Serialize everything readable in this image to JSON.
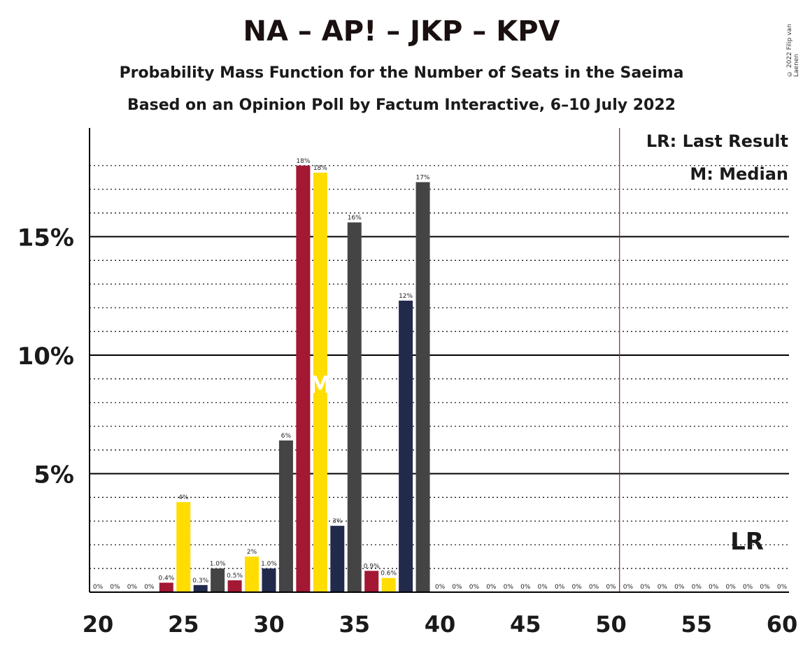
{
  "title": "NA – AP! – JKP – KPV",
  "subtitle1": "Probability Mass Function for the Number of Seats in the Saeima",
  "subtitle2": "Based on an Opinion Poll by Factum Interactive, 6–10 July 2022",
  "copyright": "© 2022 Filip van Laenen",
  "legend": {
    "lr": "LR: Last Result",
    "m": "M: Median"
  },
  "markers": {
    "median_label": "M",
    "lr_label": "LR",
    "last_result_seat": 50.5,
    "median_seat": 33
  },
  "colors": {
    "red": "#A31833",
    "yellow": "#FFDD00",
    "gray": "#444444",
    "navy": "#222A4C",
    "lr_line": "#A31833"
  },
  "chart_data": {
    "type": "bar",
    "xlim": [
      20,
      60
    ],
    "ylim": [
      0,
      18
    ],
    "x_ticks": [
      "20",
      "25",
      "30",
      "35",
      "40",
      "45",
      "50",
      "55",
      "60"
    ],
    "y_ticks": [
      "5%",
      "10%",
      "15%"
    ],
    "grid": true,
    "bars": [
      {
        "seat": 20,
        "value": 0,
        "label": "0%",
        "color": "gray"
      },
      {
        "seat": 21,
        "value": 0,
        "label": "0%",
        "color": "navy"
      },
      {
        "seat": 22,
        "value": 0,
        "label": "0%",
        "color": "red"
      },
      {
        "seat": 23,
        "value": 0,
        "label": "0%",
        "color": "yellow"
      },
      {
        "seat": 24,
        "value": 0.4,
        "label": "0.4%",
        "color": "red"
      },
      {
        "seat": 25,
        "value": 3.8,
        "label": "4%",
        "color": "yellow"
      },
      {
        "seat": 26,
        "value": 0.3,
        "label": "0.3%",
        "color": "navy"
      },
      {
        "seat": 27,
        "value": 1.0,
        "label": "1.0%",
        "color": "gray"
      },
      {
        "seat": 28,
        "value": 0.5,
        "label": "0.5%",
        "color": "red"
      },
      {
        "seat": 29,
        "value": 1.5,
        "label": "2%",
        "color": "yellow"
      },
      {
        "seat": 30,
        "value": 1.0,
        "label": "1.0%",
        "color": "navy"
      },
      {
        "seat": 31,
        "value": 6.4,
        "label": "6%",
        "color": "gray"
      },
      {
        "seat": 32,
        "value": 18.0,
        "label": "18%",
        "color": "red"
      },
      {
        "seat": 33,
        "value": 17.7,
        "label": "18%",
        "color": "yellow"
      },
      {
        "seat": 34,
        "value": 2.8,
        "label": "3%",
        "color": "navy"
      },
      {
        "seat": 35,
        "value": 15.6,
        "label": "16%",
        "color": "gray"
      },
      {
        "seat": 36,
        "value": 0.9,
        "label": "0.9%",
        "color": "red"
      },
      {
        "seat": 37,
        "value": 0.6,
        "label": "0.6%",
        "color": "yellow"
      },
      {
        "seat": 38,
        "value": 12.3,
        "label": "12%",
        "color": "navy"
      },
      {
        "seat": 39,
        "value": 17.3,
        "label": "17%",
        "color": "gray"
      },
      {
        "seat": 40,
        "value": 0,
        "label": "0%",
        "color": "red"
      },
      {
        "seat": 41,
        "value": 0,
        "label": "0%",
        "color": "yellow"
      },
      {
        "seat": 42,
        "value": 0,
        "label": "0%",
        "color": "navy"
      },
      {
        "seat": 43,
        "value": 0,
        "label": "0%",
        "color": "gray"
      },
      {
        "seat": 44,
        "value": 0,
        "label": "0%",
        "color": "red"
      },
      {
        "seat": 45,
        "value": 0,
        "label": "0%",
        "color": "yellow"
      },
      {
        "seat": 46,
        "value": 0,
        "label": "0%",
        "color": "navy"
      },
      {
        "seat": 47,
        "value": 0,
        "label": "0%",
        "color": "gray"
      },
      {
        "seat": 48,
        "value": 0,
        "label": "0%",
        "color": "red"
      },
      {
        "seat": 49,
        "value": 0,
        "label": "0%",
        "color": "yellow"
      },
      {
        "seat": 50,
        "value": 0,
        "label": "0%",
        "color": "navy"
      },
      {
        "seat": 51,
        "value": 0,
        "label": "0%",
        "color": "gray"
      },
      {
        "seat": 52,
        "value": 0,
        "label": "0%",
        "color": "red"
      },
      {
        "seat": 53,
        "value": 0,
        "label": "0%",
        "color": "yellow"
      },
      {
        "seat": 54,
        "value": 0,
        "label": "0%",
        "color": "navy"
      },
      {
        "seat": 55,
        "value": 0,
        "label": "0%",
        "color": "gray"
      },
      {
        "seat": 56,
        "value": 0,
        "label": "0%",
        "color": "red"
      },
      {
        "seat": 57,
        "value": 0,
        "label": "0%",
        "color": "yellow"
      },
      {
        "seat": 58,
        "value": 0,
        "label": "0%",
        "color": "navy"
      },
      {
        "seat": 59,
        "value": 0,
        "label": "0%",
        "color": "gray"
      },
      {
        "seat": 60,
        "value": 0,
        "label": "0%",
        "color": "red"
      }
    ]
  }
}
